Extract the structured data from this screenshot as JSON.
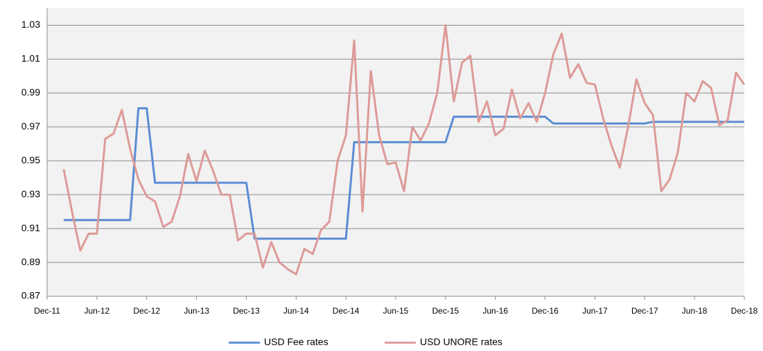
{
  "chart_data": {
    "type": "line",
    "categories": [
      "Dec-11",
      null,
      null,
      null,
      null,
      null,
      "Jun-12",
      null,
      null,
      null,
      null,
      null,
      "Dec-12",
      null,
      null,
      null,
      null,
      null,
      "Jun-13",
      null,
      null,
      null,
      null,
      null,
      "Dec-13",
      null,
      null,
      null,
      null,
      null,
      "Jun-14",
      null,
      null,
      null,
      null,
      null,
      "Dec-14",
      null,
      null,
      null,
      null,
      null,
      "Jun-15",
      null,
      null,
      null,
      null,
      null,
      "Dec-15",
      null,
      null,
      null,
      null,
      null,
      "Jun-16",
      null,
      null,
      null,
      null,
      null,
      "Dec-16",
      null,
      null,
      null,
      null,
      null,
      "Jun-17",
      null,
      null,
      null,
      null,
      null,
      "Dec-17",
      null,
      null,
      null,
      null,
      null,
      "Jun-18",
      null,
      null,
      null,
      null,
      null,
      "Dec-18"
    ],
    "series": [
      {
        "name": "USD Fee rates",
        "color": "#5b8bd4",
        "values": [
          null,
          null,
          0.915,
          0.915,
          0.915,
          0.915,
          0.915,
          0.915,
          0.915,
          0.915,
          0.915,
          0.981,
          0.981,
          0.937,
          0.937,
          0.937,
          0.937,
          0.937,
          0.937,
          0.937,
          0.937,
          0.937,
          0.937,
          0.937,
          0.937,
          0.904,
          0.904,
          0.904,
          0.904,
          0.904,
          0.904,
          0.904,
          0.904,
          0.904,
          0.904,
          0.904,
          0.904,
          0.961,
          0.961,
          0.961,
          0.961,
          0.961,
          0.961,
          0.961,
          0.961,
          0.961,
          0.961,
          0.961,
          0.961,
          0.976,
          0.976,
          0.976,
          0.976,
          0.976,
          0.976,
          0.976,
          0.976,
          0.976,
          0.976,
          0.976,
          0.976,
          0.972,
          0.972,
          0.972,
          0.972,
          0.972,
          0.972,
          0.972,
          0.972,
          0.972,
          0.972,
          0.972,
          0.972,
          0.973,
          0.973,
          0.973,
          0.973,
          0.973,
          0.973,
          0.973,
          0.973,
          0.973,
          0.973,
          0.973,
          0.973
        ]
      },
      {
        "name": "USD UNORE rates",
        "color": "#dd9a98",
        "values": [
          null,
          null,
          0.945,
          0.92,
          0.897,
          0.907,
          0.907,
          0.963,
          0.966,
          0.98,
          0.957,
          0.939,
          0.929,
          0.926,
          0.911,
          0.914,
          0.929,
          0.954,
          0.938,
          0.956,
          0.944,
          0.93,
          0.93,
          0.903,
          0.907,
          0.907,
          0.887,
          0.902,
          0.89,
          0.886,
          0.883,
          0.898,
          0.895,
          0.909,
          0.914,
          0.95,
          0.965,
          1.021,
          0.92,
          1.003,
          0.965,
          0.948,
          0.949,
          0.932,
          0.97,
          0.962,
          0.972,
          0.99,
          1.03,
          0.985,
          1.008,
          1.012,
          0.973,
          0.985,
          0.965,
          0.969,
          0.992,
          0.975,
          0.984,
          0.973,
          0.99,
          1.013,
          1.025,
          0.999,
          1.007,
          0.996,
          0.995,
          0.975,
          0.959,
          0.946,
          0.97,
          0.998,
          0.984,
          0.977,
          0.932,
          0.939,
          0.955,
          0.99,
          0.985,
          0.997,
          0.993,
          0.971,
          0.974,
          1.002,
          0.995
        ]
      }
    ],
    "ylim": [
      0.87,
      1.04
    ],
    "yticks": [
      0.87,
      0.89,
      0.91,
      0.93,
      0.95,
      0.97,
      0.99,
      1.01,
      1.03
    ],
    "grid": true,
    "legend": "bottom"
  }
}
